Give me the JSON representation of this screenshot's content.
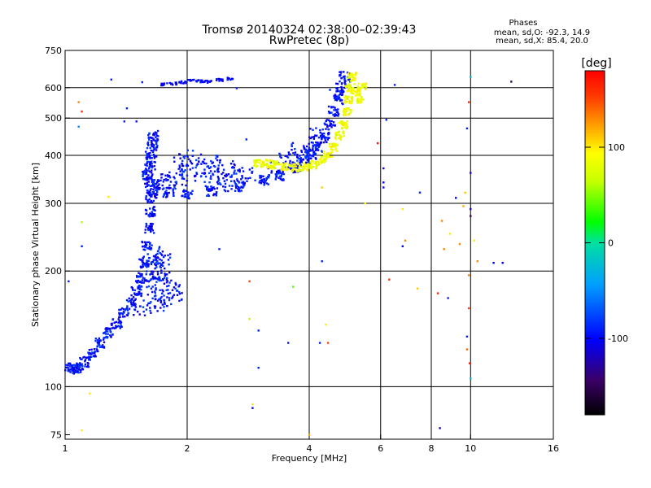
{
  "chart_data": {
    "type": "scatter",
    "title": "Tromsø 20140324 02:38:00–02:39:43",
    "subtitle": "RwPretec (8p)",
    "xlabel": "Frequency [MHz]",
    "ylabel": "Stationary phase Virtual Height [km]",
    "xscale": "log",
    "yscale": "log",
    "xlim": [
      1,
      16
    ],
    "ylim": [
      73,
      750
    ],
    "x_ticks": [
      1,
      2,
      4,
      6,
      8,
      10,
      16
    ],
    "y_ticks": [
      75,
      100,
      200,
      300,
      400,
      500,
      600,
      750
    ],
    "x_gridlines": [
      2,
      4,
      6,
      8,
      10
    ],
    "y_gridlines": [
      100,
      200,
      300,
      400,
      500,
      600
    ],
    "grid": "minor-bars-only",
    "legend": {
      "title": "Phases",
      "line1": "mean, sd,O: -92.3, 14.9",
      "line2": "mean, sd,X: 85.4, 20.0"
    },
    "colorbar": {
      "label": "[deg]",
      "min": -180,
      "max": 180,
      "ticks": [
        -100,
        0,
        100
      ]
    },
    "o_trace": [
      [
        1.02,
        112
      ],
      [
        1.05,
        111
      ],
      [
        1.08,
        112
      ],
      [
        1.12,
        116
      ],
      [
        1.17,
        122
      ],
      [
        1.22,
        130
      ],
      [
        1.28,
        138
      ],
      [
        1.34,
        146
      ],
      [
        1.4,
        156
      ],
      [
        1.45,
        166
      ],
      [
        1.5,
        178
      ],
      [
        1.54,
        192
      ],
      [
        1.57,
        210
      ],
      [
        1.59,
        232
      ],
      [
        1.61,
        258
      ],
      [
        1.62,
        285
      ],
      [
        1.63,
        310
      ],
      [
        1.64,
        325
      ],
      [
        1.62,
        340
      ],
      [
        1.6,
        355
      ],
      [
        1.62,
        375
      ],
      [
        1.63,
        400
      ],
      [
        1.64,
        425
      ],
      [
        1.65,
        450
      ],
      [
        1.7,
        335
      ],
      [
        1.8,
        320
      ],
      [
        2.0,
        317
      ],
      [
        2.3,
        322
      ],
      [
        2.7,
        332
      ],
      [
        3.1,
        345
      ],
      [
        3.4,
        355
      ],
      [
        3.7,
        372
      ],
      [
        3.9,
        388
      ],
      [
        4.05,
        402
      ],
      [
        4.2,
        420
      ],
      [
        4.35,
        445
      ],
      [
        4.5,
        480
      ],
      [
        4.6,
        520
      ],
      [
        4.7,
        560
      ],
      [
        4.8,
        600
      ],
      [
        4.9,
        640
      ]
    ],
    "o_spread": [
      [
        1.55,
        160
      ],
      [
        1.6,
        180
      ],
      [
        1.65,
        190
      ],
      [
        1.7,
        200
      ],
      [
        1.75,
        195
      ],
      [
        1.8,
        180
      ],
      [
        1.85,
        175
      ],
      [
        1.75,
        170
      ],
      [
        1.7,
        165
      ],
      [
        1.62,
        210
      ],
      [
        1.68,
        220
      ],
      [
        1.75,
        215
      ],
      [
        1.8,
        340
      ],
      [
        1.9,
        350
      ],
      [
        2.0,
        360
      ],
      [
        2.2,
        370
      ],
      [
        2.3,
        345
      ],
      [
        2.5,
        335
      ],
      [
        1.95,
        385
      ],
      [
        2.1,
        395
      ],
      [
        2.3,
        380
      ],
      [
        2.5,
        372
      ],
      [
        2.6,
        360
      ],
      [
        2.8,
        355
      ],
      [
        3.3,
        370
      ],
      [
        3.5,
        385
      ],
      [
        3.65,
        395
      ],
      [
        3.8,
        410
      ],
      [
        4.0,
        430
      ],
      [
        4.2,
        450
      ]
    ],
    "o_high_band": [
      [
        1.75,
        612
      ],
      [
        1.85,
        615
      ],
      [
        1.95,
        620
      ],
      [
        2.05,
        625
      ],
      [
        2.15,
        623
      ],
      [
        2.25,
        622
      ],
      [
        2.4,
        628
      ],
      [
        2.55,
        632
      ]
    ],
    "x_trace": [
      [
        3.0,
        382
      ],
      [
        3.15,
        380
      ],
      [
        3.3,
        378
      ],
      [
        3.5,
        375
      ],
      [
        3.7,
        372
      ],
      [
        3.9,
        373
      ],
      [
        4.1,
        378
      ],
      [
        4.3,
        388
      ],
      [
        4.45,
        400
      ],
      [
        4.6,
        420
      ],
      [
        4.75,
        450
      ],
      [
        4.85,
        480
      ],
      [
        4.95,
        520
      ],
      [
        5.0,
        560
      ],
      [
        5.05,
        600
      ],
      [
        5.1,
        640
      ],
      [
        5.2,
        590
      ],
      [
        5.3,
        560
      ],
      [
        5.4,
        600
      ]
    ],
    "noise": [
      [
        1.02,
        188,
        -90
      ],
      [
        1.1,
        232,
        -90
      ],
      [
        1.1,
        268,
        60
      ],
      [
        1.08,
        550,
        130
      ],
      [
        1.1,
        520,
        160
      ],
      [
        1.08,
        475,
        -50
      ],
      [
        1.42,
        530,
        -90
      ],
      [
        1.4,
        490,
        -90
      ],
      [
        1.5,
        490,
        -95
      ],
      [
        1.28,
        312,
        100
      ],
      [
        2.4,
        228,
        -90
      ],
      [
        2.85,
        188,
        150
      ],
      [
        2.85,
        150,
        60
      ],
      [
        3.0,
        140,
        -90
      ],
      [
        3.0,
        112,
        -90
      ],
      [
        2.9,
        90,
        100
      ],
      [
        2.9,
        88,
        -100
      ],
      [
        3.55,
        130,
        -90
      ],
      [
        3.65,
        182,
        40
      ],
      [
        4.25,
        130,
        -90
      ],
      [
        4.3,
        212,
        -90
      ],
      [
        4.45,
        130,
        150
      ],
      [
        4.4,
        145,
        100
      ],
      [
        4.3,
        330,
        110
      ],
      [
        4.5,
        592,
        -90
      ],
      [
        6.1,
        370,
        -120
      ],
      [
        6.1,
        330,
        -110
      ],
      [
        6.1,
        340,
        -100
      ],
      [
        6.3,
        190,
        160
      ],
      [
        6.8,
        290,
        100
      ],
      [
        6.9,
        240,
        130
      ],
      [
        6.8,
        232,
        -100
      ],
      [
        7.4,
        180,
        110
      ],
      [
        7.5,
        320,
        -90
      ],
      [
        8.3,
        175,
        160
      ],
      [
        8.4,
        78,
        -120
      ],
      [
        8.5,
        270,
        130
      ],
      [
        8.6,
        228,
        130
      ],
      [
        8.9,
        250,
        100
      ],
      [
        8.8,
        170,
        -90
      ],
      [
        9.2,
        310,
        -100
      ],
      [
        9.4,
        235,
        130
      ],
      [
        9.6,
        295,
        120
      ],
      [
        9.7,
        320,
        110
      ],
      [
        9.8,
        470,
        -90
      ],
      [
        9.8,
        135,
        -90
      ],
      [
        9.8,
        125,
        140
      ],
      [
        9.9,
        160,
        150
      ],
      [
        9.9,
        195,
        130
      ],
      [
        9.95,
        115,
        170
      ],
      [
        10.0,
        105,
        -30
      ],
      [
        9.9,
        550,
        160
      ],
      [
        10.0,
        360,
        -110
      ],
      [
        10.0,
        290,
        -110
      ],
      [
        10.0,
        278,
        -150
      ],
      [
        10.2,
        240,
        100
      ],
      [
        10.4,
        212,
        130
      ],
      [
        11.4,
        210,
        -100
      ],
      [
        12.0,
        210,
        -100
      ],
      [
        12.6,
        622,
        -150
      ],
      [
        10.0,
        640,
        -30
      ],
      [
        1.3,
        630,
        -90
      ],
      [
        1.55,
        620,
        -90
      ],
      [
        5.9,
        430,
        170
      ],
      [
        5.5,
        300,
        90
      ],
      [
        6.5,
        610,
        -90
      ],
      [
        6.2,
        495,
        -90
      ],
      [
        2.8,
        440,
        -90
      ],
      [
        2.65,
        598,
        -90
      ],
      [
        4.0,
        75,
        120
      ],
      [
        1.1,
        77,
        100
      ],
      [
        1.15,
        96,
        100
      ]
    ]
  }
}
